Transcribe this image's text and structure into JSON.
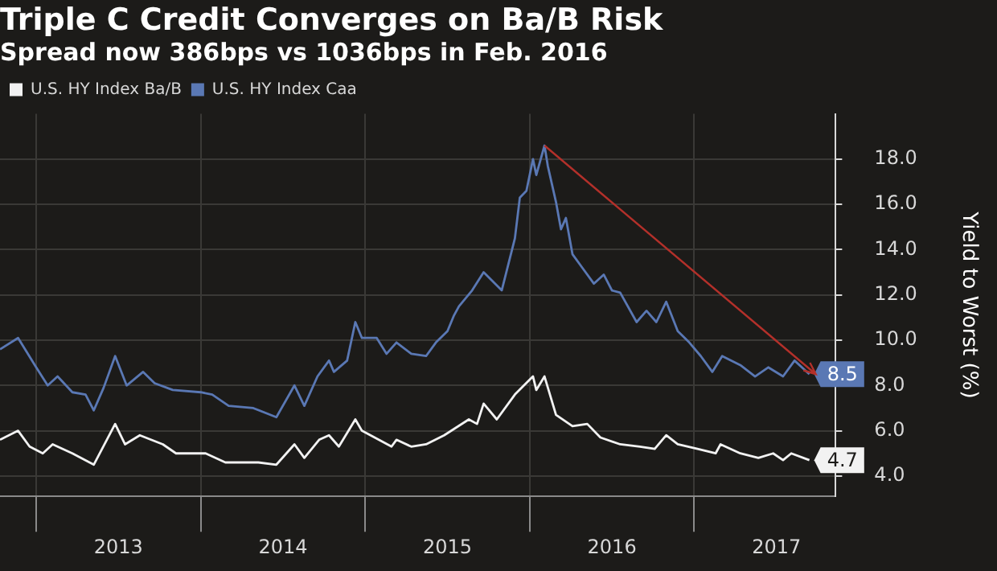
{
  "chart_data": {
    "type": "line",
    "title": "Triple C Credit Converges on Ba/B Risk",
    "subtitle": "Spread now 386bps vs 1036bps in Feb. 2016",
    "ylabel": "Yield to Worst (%)",
    "legend": "top left",
    "grid": true,
    "marker": "none",
    "line_style": "solid",
    "xlim": [
      2012.78,
      2017.86
    ],
    "xticks": [
      {
        "value": 2013,
        "label": null
      },
      {
        "value": 2013.5,
        "label": "2013"
      },
      {
        "value": 2014,
        "label": null
      },
      {
        "value": 2014.5,
        "label": "2014"
      },
      {
        "value": 2015,
        "label": null
      },
      {
        "value": 2015.5,
        "label": "2015"
      },
      {
        "value": 2016,
        "label": null
      },
      {
        "value": 2016.5,
        "label": "2016"
      },
      {
        "value": 2017,
        "label": null
      },
      {
        "value": 2017.5,
        "label": "2017"
      }
    ],
    "ylim": [
      3.1,
      20
    ],
    "yticks": [
      {
        "value": 4,
        "label": "4.0"
      },
      {
        "value": 6,
        "label": "6.0"
      },
      {
        "value": 8,
        "label": "8.0"
      },
      {
        "value": 10,
        "label": "10.0"
      },
      {
        "value": 12,
        "label": "12.0"
      },
      {
        "value": 14,
        "label": "14.0"
      },
      {
        "value": 16,
        "label": "16.0"
      },
      {
        "value": 18,
        "label": "18.0"
      }
    ],
    "annotations": [
      {
        "text": "4.7",
        "x": 2017.7,
        "y": 4.7
      },
      {
        "text": "8.5",
        "x": 2017.7,
        "y": 8.5
      }
    ],
    "series": [
      {
        "name": "U.S. HY Index Ba/B",
        "color": "#f2f2f2",
        "x": [
          2012.78,
          2012.89,
          2012.96,
          2013.04,
          2013.1,
          2013.22,
          2013.35,
          2013.48,
          2013.54,
          2013.63,
          2013.77,
          2013.85,
          2014.03,
          2014.15,
          2014.35,
          2014.46,
          2014.57,
          2014.63,
          2014.72,
          2014.78,
          2014.84,
          2014.94,
          2014.98,
          2015.16,
          2015.19,
          2015.28,
          2015.37,
          2015.48,
          2015.63,
          2015.68,
          2015.72,
          2015.8,
          2015.91,
          2016.02,
          2016.04,
          2016.09,
          2016.16,
          2016.26,
          2016.35,
          2016.43,
          2016.55,
          2016.67,
          2016.76,
          2016.83,
          2016.9,
          2017.02,
          2017.13,
          2017.16,
          2017.28,
          2017.39,
          2017.48,
          2017.54,
          2017.59,
          2017.7
        ],
        "values": [
          5.6,
          6.0,
          5.3,
          5.0,
          5.4,
          5.0,
          4.5,
          6.3,
          5.4,
          5.8,
          5.4,
          5.0,
          5.0,
          4.6,
          4.6,
          4.5,
          5.4,
          4.8,
          5.6,
          5.8,
          5.3,
          6.5,
          6.0,
          5.3,
          5.6,
          5.3,
          5.4,
          5.8,
          6.5,
          6.3,
          7.2,
          6.5,
          7.6,
          8.4,
          7.8,
          8.4,
          6.7,
          6.2,
          6.3,
          5.7,
          5.4,
          5.3,
          5.2,
          5.8,
          5.4,
          5.2,
          5.0,
          5.4,
          5.0,
          4.8,
          5.0,
          4.7,
          5.0,
          4.7
        ]
      },
      {
        "name": "U.S. HY Index Caa",
        "color": "#5a78b4",
        "x": [
          2012.78,
          2012.89,
          2013.0,
          2013.07,
          2013.13,
          2013.22,
          2013.3,
          2013.35,
          2013.41,
          2013.48,
          2013.55,
          2013.65,
          2013.72,
          2013.83,
          2014.0,
          2014.07,
          2014.17,
          2014.32,
          2014.46,
          2014.57,
          2014.63,
          2014.71,
          2014.78,
          2014.81,
          2014.89,
          2014.94,
          2014.98,
          2015.07,
          2015.13,
          2015.19,
          2015.28,
          2015.37,
          2015.43,
          2015.5,
          2015.54,
          2015.57,
          2015.65,
          2015.72,
          2015.83,
          2015.91,
          2015.94,
          2015.98,
          2016.02,
          2016.04,
          2016.09,
          2016.11,
          2016.16,
          2016.19,
          2016.22,
          2016.26,
          2016.32,
          2016.39,
          2016.45,
          2016.5,
          2016.55,
          2016.65,
          2016.71,
          2016.77,
          2016.83,
          2016.9,
          2016.97,
          2017.04,
          2017.11,
          2017.17,
          2017.28,
          2017.37,
          2017.45,
          2017.54,
          2017.61,
          2017.7
        ],
        "values": [
          9.6,
          10.1,
          8.8,
          8.0,
          8.4,
          7.7,
          7.6,
          6.9,
          7.9,
          9.3,
          8.0,
          8.6,
          8.1,
          7.8,
          7.7,
          7.6,
          7.1,
          7.0,
          6.6,
          8.0,
          7.1,
          8.4,
          9.1,
          8.6,
          9.1,
          10.8,
          10.1,
          10.1,
          9.4,
          9.9,
          9.4,
          9.3,
          9.9,
          10.4,
          11.1,
          11.5,
          12.2,
          13.0,
          12.2,
          14.5,
          16.3,
          16.6,
          18.0,
          17.3,
          18.6,
          17.7,
          16.1,
          14.9,
          15.4,
          13.8,
          13.2,
          12.5,
          12.9,
          12.2,
          12.1,
          10.8,
          11.3,
          10.8,
          11.7,
          10.4,
          9.9,
          9.3,
          8.6,
          9.3,
          8.9,
          8.4,
          8.8,
          8.4,
          9.1,
          8.5
        ]
      }
    ]
  }
}
